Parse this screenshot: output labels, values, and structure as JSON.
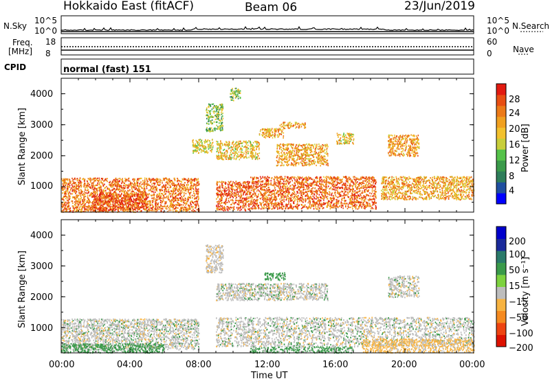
{
  "header": {
    "radar": "Hokkaido East (fitACF)",
    "beam": "Beam 06",
    "date": "23/Jun/2019"
  },
  "noise_panel": {
    "left_label": "N.Sky",
    "right_label": "N.Search",
    "left_ticks": [
      "10^5",
      "10^0"
    ],
    "right_ticks": [
      "10^5",
      "10^0"
    ]
  },
  "freq_panel": {
    "left_label_line1": "Freq.",
    "left_label_line2": "[MHz]",
    "left_ticks": [
      "18",
      "8"
    ],
    "right_label": "Nave",
    "right_ticks": [
      "60",
      "0"
    ]
  },
  "cpid_panel": {
    "label": "CPID",
    "text": "normal (fast) 151"
  },
  "x_axis": {
    "label": "Time UT",
    "ticks": [
      "00:00",
      "04:00",
      "08:00",
      "12:00",
      "16:00",
      "20:00",
      "00:00"
    ]
  },
  "colors": {
    "power": [
      "#0000ff",
      "#1f4fa0",
      "#2e7d5a",
      "#3a9a4a",
      "#55c24a",
      "#c8ce3a",
      "#f2c12e",
      "#f0a020",
      "#ec7a18",
      "#e84e12",
      "#e21a10"
    ],
    "velocity": [
      "#dd1100",
      "#ee4411",
      "#f58a20",
      "#f7b341",
      "#bdbdbd",
      "#7dd23f",
      "#3a9a4a",
      "#2a7a6a",
      "#1a2a9a",
      "#0000cc"
    ]
  },
  "chart_data": [
    {
      "type": "heatmap",
      "name": "power",
      "x_range": [
        "00:00",
        "00:00"
      ],
      "ylabel": "Slant Range [km]",
      "y_ticks": [
        1000,
        2000,
        3000,
        4000
      ],
      "ylim": [
        180,
        4500
      ],
      "colorbar": {
        "label": "Power [dB]",
        "ticks": [
          4,
          8,
          12,
          16,
          20,
          24,
          28
        ],
        "range": [
          0,
          30
        ]
      },
      "regions": [
        {
          "t0": 0.0,
          "t1": 8.0,
          "r0": 200,
          "r1": 1300,
          "level": 23
        },
        {
          "t0": 1.8,
          "t1": 5.0,
          "r0": 250,
          "r1": 800,
          "level": 26
        },
        {
          "t0": 9.0,
          "t1": 11.0,
          "r0": 250,
          "r1": 1200,
          "level": 25
        },
        {
          "t0": 11.0,
          "t1": 18.3,
          "r0": 300,
          "r1": 1350,
          "level": 24
        },
        {
          "t0": 18.6,
          "t1": 24.0,
          "r0": 600,
          "r1": 1350,
          "level": 20
        },
        {
          "t0": 12.5,
          "t1": 15.5,
          "r0": 1700,
          "r1": 2400,
          "level": 20
        },
        {
          "t0": 9.0,
          "t1": 11.5,
          "r0": 1900,
          "r1": 2500,
          "level": 18
        },
        {
          "t0": 7.6,
          "t1": 8.8,
          "r0": 2100,
          "r1": 2550,
          "level": 17
        },
        {
          "t0": 11.5,
          "t1": 12.9,
          "r0": 2600,
          "r1": 2900,
          "level": 20
        },
        {
          "t0": 12.7,
          "t1": 14.2,
          "r0": 2900,
          "r1": 3100,
          "level": 20
        },
        {
          "t0": 8.4,
          "t1": 9.4,
          "r0": 2800,
          "r1": 3700,
          "level": 13
        },
        {
          "t0": 9.8,
          "t1": 10.4,
          "r0": 3800,
          "r1": 4200,
          "level": 13
        },
        {
          "t0": 19.0,
          "t1": 20.8,
          "r0": 2000,
          "r1": 2700,
          "level": 21
        },
        {
          "t0": 16.0,
          "t1": 17.0,
          "r0": 2400,
          "r1": 2750,
          "level": 18
        }
      ]
    },
    {
      "type": "heatmap",
      "name": "velocity",
      "x_range": [
        "00:00",
        "00:00"
      ],
      "ylabel": "Slant Range [km]",
      "y_ticks": [
        1000,
        2000,
        3000,
        4000
      ],
      "ylim": [
        180,
        4500
      ],
      "colorbar": {
        "label": "Velocity [m s⁻¹]",
        "ticks": [
          -200,
          -100,
          -50,
          -15,
          15,
          50,
          100,
          200
        ],
        "tick_labels": [
          "−200",
          "−100",
          "−50",
          "−15",
          "15",
          "50",
          "100",
          "200"
        ],
        "range": [
          -250,
          250
        ]
      },
      "regions": [
        {
          "t0": 0.0,
          "t1": 8.0,
          "r0": 300,
          "r1": 1300,
          "level": 0
        },
        {
          "t0": 0.0,
          "t1": 6.0,
          "r0": 200,
          "r1": 500,
          "level": 30
        },
        {
          "t0": 9.0,
          "t1": 24.0,
          "r0": 400,
          "r1": 1350,
          "level": 0
        },
        {
          "t0": 17.5,
          "t1": 24.0,
          "r0": 200,
          "r1": 650,
          "level": -25
        },
        {
          "t0": 11.0,
          "t1": 17.0,
          "r0": 200,
          "r1": 400,
          "level": 25
        },
        {
          "t0": 9.0,
          "t1": 15.5,
          "r0": 1900,
          "r1": 2450,
          "level": 0
        },
        {
          "t0": 8.4,
          "t1": 9.4,
          "r0": 2800,
          "r1": 3700,
          "level": -5
        },
        {
          "t0": 19.0,
          "t1": 20.8,
          "r0": 2000,
          "r1": 2700,
          "level": 0
        },
        {
          "t0": 11.8,
          "t1": 13.0,
          "r0": 2550,
          "r1": 2800,
          "level": 30
        }
      ]
    }
  ]
}
